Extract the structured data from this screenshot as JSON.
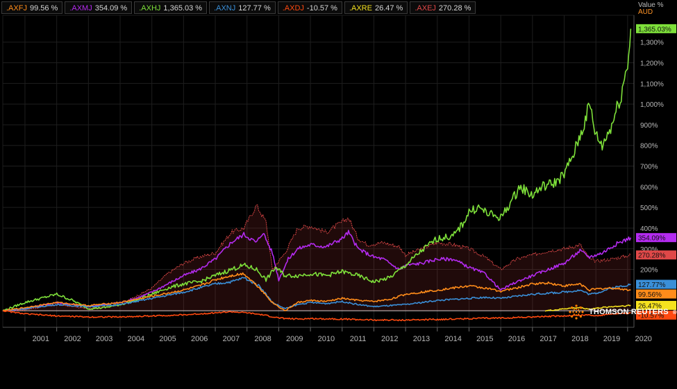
{
  "legend": [
    {
      "ric": ".AXFJ",
      "value": "99.56 %",
      "color": "#ff8c1a"
    },
    {
      "ric": ".AXMJ",
      "value": "354.09 %",
      "color": "#b42bf0"
    },
    {
      "ric": ".AXHJ",
      "value": "1,365.03 %",
      "color": "#7ee03a"
    },
    {
      "ric": ".AXNJ",
      "value": "127.77 %",
      "color": "#3a8fd8"
    },
    {
      "ric": ".AXDJ",
      "value": "-10.57 %",
      "color": "#ff4a10"
    },
    {
      "ric": ".AXRE",
      "value": "26.47 %",
      "color": "#f5e21e"
    },
    {
      "ric": ".AXEJ",
      "value": "270.28 %",
      "color": "#e04848"
    }
  ],
  "axis_header": {
    "line1": "Value %",
    "line2": "AUD"
  },
  "brand": {
    "name": "THOMSON REUTERS",
    "mark": "®"
  },
  "chart_data": {
    "type": "line",
    "x_unit": "year",
    "y_unit": "Value % (AUD)",
    "x_ticks": [
      "2001",
      "2002",
      "2003",
      "2004",
      "2005",
      "2006",
      "2007",
      "2008",
      "2009",
      "2010",
      "2011",
      "2012",
      "2013",
      "2014",
      "2015",
      "2016",
      "2017",
      "2018",
      "2019",
      "2020"
    ],
    "y_ticks": [
      "200%",
      "300%",
      "400%",
      "500%",
      "600%",
      "700%",
      "800%",
      "900%",
      "1,000%",
      "1,100%",
      "1,200%",
      "1,300%"
    ],
    "y_tick_values": [
      200,
      300,
      400,
      500,
      600,
      700,
      800,
      900,
      1000,
      1100,
      1200,
      1300
    ],
    "xlim": [
      2000.3,
      2020.2
    ],
    "ylim": [
      -80,
      1430
    ],
    "grid": true,
    "baseline": 0,
    "series": [
      {
        "name": ".AXEJ",
        "color": "#e04848",
        "end_label": "270.28%",
        "area": true,
        "points": [
          [
            2000.3,
            0
          ],
          [
            2001,
            5
          ],
          [
            2002,
            30
          ],
          [
            2003,
            10
          ],
          [
            2004,
            30
          ],
          [
            2004.5,
            70
          ],
          [
            2005,
            110
          ],
          [
            2005.5,
            180
          ],
          [
            2006,
            230
          ],
          [
            2006.5,
            260
          ],
          [
            2007,
            280
          ],
          [
            2007.5,
            380
          ],
          [
            2007.9,
            400
          ],
          [
            2008.3,
            510
          ],
          [
            2008.6,
            430
          ],
          [
            2008.8,
            200
          ],
          [
            2009.2,
            280
          ],
          [
            2009.6,
            400
          ],
          [
            2010,
            410
          ],
          [
            2010.5,
            380
          ],
          [
            2011,
            430
          ],
          [
            2011.2,
            450
          ],
          [
            2011.5,
            350
          ],
          [
            2011.8,
            320
          ],
          [
            2012.3,
            330
          ],
          [
            2012.8,
            310
          ],
          [
            2013,
            270
          ],
          [
            2013.5,
            300
          ],
          [
            2014,
            330
          ],
          [
            2014.5,
            320
          ],
          [
            2015,
            300
          ],
          [
            2015.5,
            260
          ],
          [
            2016,
            200
          ],
          [
            2016.5,
            250
          ],
          [
            2017,
            270
          ],
          [
            2017.5,
            290
          ],
          [
            2018,
            300
          ],
          [
            2018.5,
            320
          ],
          [
            2018.8,
            250
          ],
          [
            2019,
            240
          ],
          [
            2019.5,
            250
          ],
          [
            2020.1,
            270
          ]
        ]
      },
      {
        "name": ".AXMJ",
        "color": "#b42bf0",
        "end_label": "354.09%",
        "points": [
          [
            2000.3,
            0
          ],
          [
            2001,
            10
          ],
          [
            2002,
            40
          ],
          [
            2003,
            20
          ],
          [
            2004,
            40
          ],
          [
            2004.5,
            60
          ],
          [
            2005,
            90
          ],
          [
            2005.5,
            130
          ],
          [
            2006,
            170
          ],
          [
            2006.5,
            200
          ],
          [
            2007,
            250
          ],
          [
            2007.5,
            330
          ],
          [
            2007.9,
            370
          ],
          [
            2008.3,
            330
          ],
          [
            2008.5,
            380
          ],
          [
            2008.8,
            280
          ],
          [
            2009,
            150
          ],
          [
            2009.3,
            250
          ],
          [
            2009.6,
            300
          ],
          [
            2010,
            320
          ],
          [
            2010.5,
            310
          ],
          [
            2011,
            350
          ],
          [
            2011.2,
            380
          ],
          [
            2011.5,
            300
          ],
          [
            2012,
            260
          ],
          [
            2012.3,
            250
          ],
          [
            2012.8,
            200
          ],
          [
            2013,
            220
          ],
          [
            2013.5,
            230
          ],
          [
            2014,
            250
          ],
          [
            2014.5,
            250
          ],
          [
            2015,
            210
          ],
          [
            2015.5,
            180
          ],
          [
            2016,
            100
          ],
          [
            2016.5,
            140
          ],
          [
            2017,
            170
          ],
          [
            2017.5,
            200
          ],
          [
            2018,
            230
          ],
          [
            2018.5,
            290
          ],
          [
            2018.8,
            260
          ],
          [
            2019.2,
            280
          ],
          [
            2019.6,
            320
          ],
          [
            2020.1,
            354
          ]
        ]
      },
      {
        "name": ".AXHJ",
        "color": "#7ee03a",
        "end_label": "1,365.03%",
        "points": [
          [
            2000.3,
            0
          ],
          [
            2001,
            40
          ],
          [
            2002,
            80
          ],
          [
            2002.5,
            50
          ],
          [
            2003,
            10
          ],
          [
            2003.5,
            15
          ],
          [
            2004,
            30
          ],
          [
            2004.5,
            50
          ],
          [
            2005,
            80
          ],
          [
            2005.5,
            110
          ],
          [
            2006,
            130
          ],
          [
            2006.5,
            140
          ],
          [
            2007,
            170
          ],
          [
            2007.5,
            200
          ],
          [
            2007.9,
            220
          ],
          [
            2008.3,
            200
          ],
          [
            2008.6,
            150
          ],
          [
            2008.9,
            210
          ],
          [
            2009.2,
            170
          ],
          [
            2009.6,
            170
          ],
          [
            2010,
            180
          ],
          [
            2010.5,
            170
          ],
          [
            2011,
            190
          ],
          [
            2011.5,
            170
          ],
          [
            2012,
            140
          ],
          [
            2012.5,
            160
          ],
          [
            2013,
            220
          ],
          [
            2013.5,
            290
          ],
          [
            2014,
            350
          ],
          [
            2014.5,
            360
          ],
          [
            2014.8,
            420
          ],
          [
            2015,
            480
          ],
          [
            2015.3,
            500
          ],
          [
            2015.6,
            470
          ],
          [
            2016,
            450
          ],
          [
            2016.3,
            520
          ],
          [
            2016.6,
            600
          ],
          [
            2017,
            560
          ],
          [
            2017.3,
            600
          ],
          [
            2017.7,
            620
          ],
          [
            2018,
            660
          ],
          [
            2018.3,
            760
          ],
          [
            2018.6,
            890
          ],
          [
            2018.8,
            1000
          ],
          [
            2019,
            850
          ],
          [
            2019.2,
            800
          ],
          [
            2019.5,
            900
          ],
          [
            2019.8,
            1050
          ],
          [
            2020,
            1200
          ],
          [
            2020.1,
            1365
          ]
        ]
      },
      {
        "name": ".AXNJ",
        "color": "#3a8fd8",
        "end_label": "127.77%",
        "points": [
          [
            2000.3,
            0
          ],
          [
            2001,
            10
          ],
          [
            2002,
            30
          ],
          [
            2003,
            20
          ],
          [
            2004,
            30
          ],
          [
            2005,
            60
          ],
          [
            2006,
            90
          ],
          [
            2006.5,
            110
          ],
          [
            2007,
            130
          ],
          [
            2007.5,
            140
          ],
          [
            2007.9,
            160
          ],
          [
            2008.4,
            120
          ],
          [
            2008.8,
            40
          ],
          [
            2009.2,
            10
          ],
          [
            2009.6,
            30
          ],
          [
            2010,
            40
          ],
          [
            2010.5,
            35
          ],
          [
            2011,
            45
          ],
          [
            2011.5,
            30
          ],
          [
            2012,
            20
          ],
          [
            2012.5,
            25
          ],
          [
            2013,
            30
          ],
          [
            2013.5,
            40
          ],
          [
            2014,
            50
          ],
          [
            2014.5,
            55
          ],
          [
            2015,
            60
          ],
          [
            2015.5,
            65
          ],
          [
            2016,
            60
          ],
          [
            2016.5,
            70
          ],
          [
            2017,
            80
          ],
          [
            2017.5,
            85
          ],
          [
            2018,
            90
          ],
          [
            2018.5,
            100
          ],
          [
            2018.8,
            80
          ],
          [
            2019,
            85
          ],
          [
            2019.5,
            110
          ],
          [
            2020.1,
            128
          ]
        ]
      },
      {
        "name": ".AXFJ",
        "color": "#ff8c1a",
        "end_label": "99.56%",
        "points": [
          [
            2000.3,
            0
          ],
          [
            2001,
            15
          ],
          [
            2002,
            40
          ],
          [
            2003,
            25
          ],
          [
            2004,
            40
          ],
          [
            2005,
            70
          ],
          [
            2006,
            100
          ],
          [
            2006.5,
            120
          ],
          [
            2007,
            150
          ],
          [
            2007.5,
            170
          ],
          [
            2007.9,
            180
          ],
          [
            2008.4,
            110
          ],
          [
            2008.8,
            40
          ],
          [
            2009.2,
            0
          ],
          [
            2009.6,
            40
          ],
          [
            2010,
            50
          ],
          [
            2010.5,
            45
          ],
          [
            2011,
            60
          ],
          [
            2011.5,
            50
          ],
          [
            2012,
            45
          ],
          [
            2012.5,
            55
          ],
          [
            2013,
            80
          ],
          [
            2013.5,
            90
          ],
          [
            2014,
            100
          ],
          [
            2014.5,
            110
          ],
          [
            2015,
            120
          ],
          [
            2015.5,
            110
          ],
          [
            2016,
            95
          ],
          [
            2016.5,
            110
          ],
          [
            2017,
            130
          ],
          [
            2017.5,
            135
          ],
          [
            2018,
            120
          ],
          [
            2018.5,
            130
          ],
          [
            2018.8,
            100
          ],
          [
            2019,
            105
          ],
          [
            2019.5,
            110
          ],
          [
            2020.1,
            100
          ]
        ]
      },
      {
        "name": ".AXRE",
        "color": "#f5e21e",
        "end_label": "26.47%",
        "points": [
          [
            2017.4,
            0
          ],
          [
            2017.8,
            5
          ],
          [
            2018,
            10
          ],
          [
            2018.5,
            15
          ],
          [
            2018.8,
            8
          ],
          [
            2019,
            12
          ],
          [
            2019.5,
            20
          ],
          [
            2020.1,
            26
          ]
        ]
      },
      {
        "name": ".AXDJ",
        "color": "#ff4a10",
        "end_label": "-10.57%",
        "points": [
          [
            2000.3,
            0
          ],
          [
            2001,
            -15
          ],
          [
            2002,
            -25
          ],
          [
            2003,
            -30
          ],
          [
            2004,
            -30
          ],
          [
            2005,
            -25
          ],
          [
            2006,
            -20
          ],
          [
            2007,
            -10
          ],
          [
            2007.5,
            -5
          ],
          [
            2008,
            -10
          ],
          [
            2008.5,
            -20
          ],
          [
            2009,
            -35
          ],
          [
            2009.5,
            -40
          ],
          [
            2010,
            -38
          ],
          [
            2011,
            -40
          ],
          [
            2012,
            -45
          ],
          [
            2013,
            -45
          ],
          [
            2014,
            -42
          ],
          [
            2015,
            -38
          ],
          [
            2016,
            -35
          ],
          [
            2017,
            -30
          ],
          [
            2018,
            -25
          ],
          [
            2018.8,
            -20
          ],
          [
            2019,
            -25
          ],
          [
            2019.5,
            -15
          ],
          [
            2020.1,
            -11
          ]
        ]
      }
    ]
  }
}
